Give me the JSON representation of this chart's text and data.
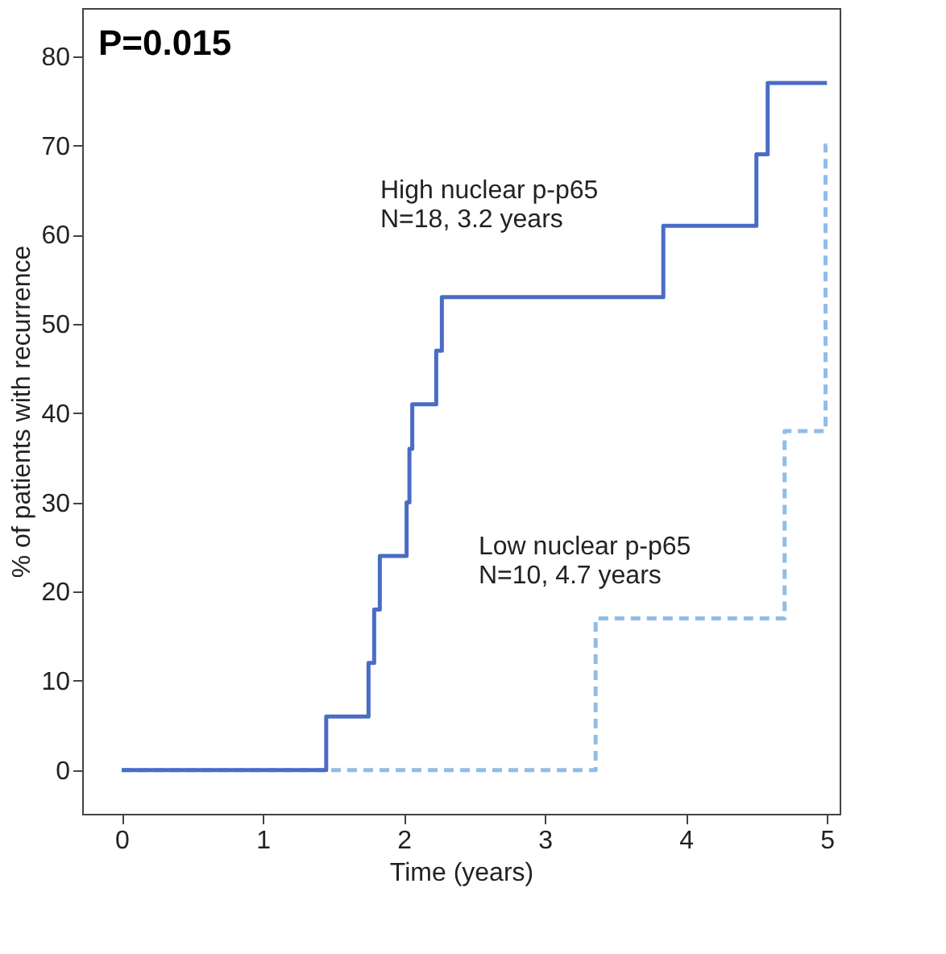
{
  "chart_data": {
    "type": "step",
    "xlabel": "Time (years)",
    "ylabel": "% of patients with recurrence",
    "xlim": [
      -0.28,
      5.09
    ],
    "ylim": [
      -4.9,
      85.4
    ],
    "xticks": [
      0,
      1,
      2,
      3,
      4,
      5
    ],
    "yticks": [
      0,
      10,
      20,
      30,
      40,
      50,
      60,
      70,
      80
    ],
    "grid": false,
    "marker": "none",
    "series": [
      {
        "color": "#8fbde8",
        "line_style": "dashed",
        "x": [
          0,
          3.36,
          4.7,
          4.99,
          5.0
        ],
        "values": [
          0,
          17,
          38,
          70,
          70
        ]
      },
      {
        "color": "#4a6cc4",
        "line_style": "solid",
        "x": [
          0,
          1.45,
          1.75,
          1.79,
          1.83,
          2.02,
          2.04,
          2.06,
          2.23,
          2.27,
          3.84,
          4.5,
          4.58,
          5.0
        ],
        "values": [
          0,
          6,
          12,
          18,
          24,
          30,
          36,
          41,
          47,
          53,
          61,
          69,
          77,
          77
        ]
      }
    ],
    "annotations": [
      "P=0.015",
      "High nuclear p-p65\nN=18, 3.2 years",
      "Low nuclear p-p65\nN=10, 4.7 years"
    ]
  }
}
